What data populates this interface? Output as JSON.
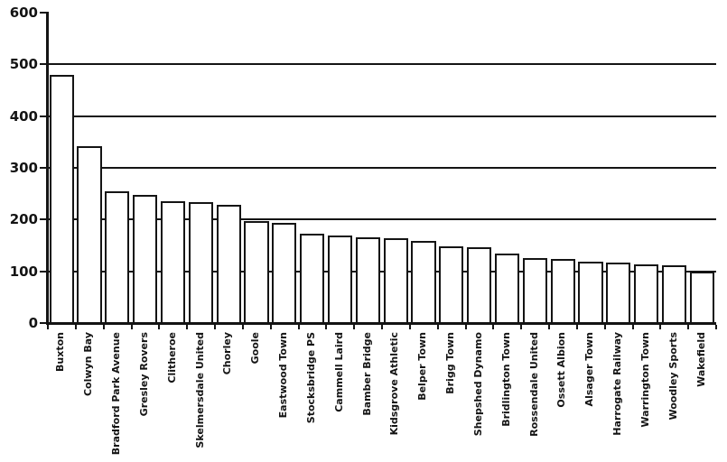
{
  "chart_data": {
    "type": "bar",
    "title": "",
    "xlabel": "",
    "ylabel": "",
    "categories": [
      "Buxton",
      "Colwyn Bay",
      "Bradford Park Avenue",
      "Gresley Rovers",
      "Clitheroe",
      "Skelmersdale United",
      "Chorley",
      "Goole",
      "Eastwood Town",
      "Stocksbridge PS",
      "Cammell Laird",
      "Bamber Bridge",
      "Kidsgrove Athletic",
      "Belper Town",
      "Brigg Town",
      "Shepshed Dynamo",
      "Bridlington Town",
      "Rossendale United",
      "Ossett Albion",
      "Alsager Town",
      "Harrogate Railway",
      "Warrington Town",
      "Woodley Sports",
      "Wakefield"
    ],
    "values": [
      480,
      342,
      255,
      247,
      235,
      233,
      229,
      197,
      193,
      173,
      170,
      166,
      164,
      159,
      148,
      147,
      134,
      126,
      124,
      119,
      117,
      114,
      111,
      100
    ],
    "ylim": [
      0,
      600
    ],
    "yticks": [
      0,
      100,
      200,
      300,
      400,
      500,
      600
    ],
    "gridline_values": [
      100,
      200,
      300,
      400,
      500
    ],
    "grid": "horizontal",
    "legend_position": "none",
    "bar_fill_color": "#ffffff",
    "bar_stroke_color": "#141414",
    "axis_color": "#141414",
    "background_color": "#ffffff"
  }
}
